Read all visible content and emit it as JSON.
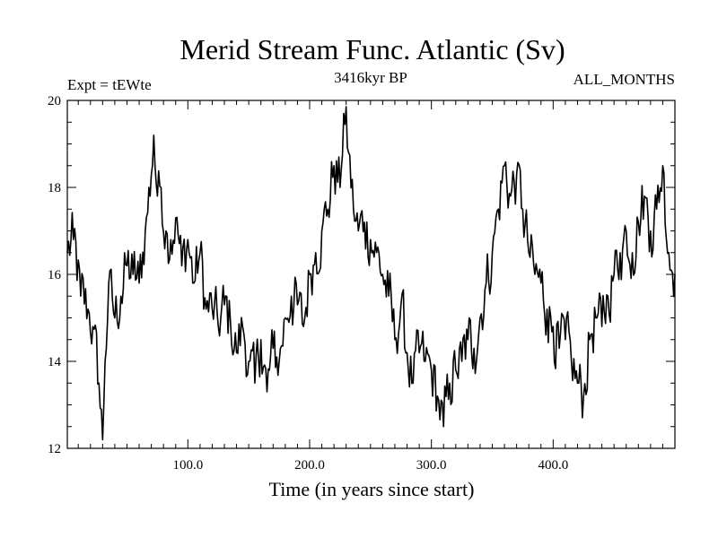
{
  "chart_data": {
    "type": "line",
    "title": "Merid Stream Func. Atlantic (Sv)",
    "subtitle_left": "Expt = tEWte",
    "subtitle_center": "3416kyr BP",
    "subtitle_right": "ALL_MONTHS",
    "xlabel": "Time (in years since start)",
    "ylabel": "",
    "xlim": [
      1,
      500
    ],
    "ylim": [
      12,
      20
    ],
    "xticks": [
      100,
      200,
      300,
      400
    ],
    "xtick_labels": [
      "100.0",
      "200.0",
      "300.0",
      "400.0"
    ],
    "yticks": [
      12,
      14,
      16,
      18,
      20
    ],
    "ytick_labels": [
      "12",
      "14",
      "16",
      "18",
      "20"
    ],
    "series": [
      {
        "name": "Merid Stream Func. Atlantic",
        "color": "#000000",
        "x": [
          1,
          6,
          12,
          18,
          22,
          27,
          30,
          32,
          35,
          40,
          45,
          50,
          55,
          60,
          65,
          70,
          72,
          75,
          78,
          82,
          86,
          90,
          95,
          100,
          105,
          110,
          115,
          120,
          125,
          130,
          135,
          140,
          145,
          150,
          155,
          160,
          165,
          170,
          175,
          180,
          185,
          190,
          195,
          200,
          205,
          210,
          215,
          220,
          225,
          228,
          232,
          236,
          240,
          245,
          250,
          255,
          260,
          265,
          270,
          275,
          280,
          285,
          290,
          295,
          300,
          305,
          310,
          315,
          320,
          325,
          330,
          335,
          340,
          345,
          350,
          355,
          360,
          365,
          370,
          375,
          380,
          385,
          390,
          395,
          400,
          405,
          410,
          415,
          420,
          425,
          430,
          435,
          440,
          445,
          450,
          455,
          460,
          465,
          470,
          475,
          480,
          485,
          490,
          495,
          500
        ],
        "values": [
          16.5,
          16.8,
          15.5,
          15.2,
          14.8,
          13.5,
          12.2,
          14.0,
          15.8,
          15.0,
          15.5,
          16.2,
          16.0,
          15.8,
          17.0,
          18.3,
          19.2,
          17.8,
          18.0,
          17.0,
          16.8,
          17.3,
          16.2,
          16.8,
          15.8,
          16.5,
          15.2,
          15.2,
          14.8,
          15.3,
          14.9,
          14.2,
          14.8,
          14.0,
          13.5,
          14.5,
          13.3,
          14.3,
          14.0,
          15.0,
          15.5,
          15.3,
          14.8,
          16.0,
          16.5,
          17.0,
          17.5,
          18.5,
          18.0,
          19.7,
          18.8,
          17.5,
          17.0,
          17.2,
          16.8,
          16.5,
          16.0,
          15.5,
          14.5,
          15.3,
          14.2,
          13.5,
          14.2,
          14.0,
          13.8,
          13.2,
          12.5,
          13.5,
          13.8,
          14.0,
          14.5,
          14.3,
          15.0,
          15.8,
          16.5,
          17.5,
          18.5,
          17.8,
          18.3,
          17.5,
          16.5,
          16.0,
          15.8,
          15.2,
          14.8,
          14.3,
          14.5,
          14.0,
          13.5,
          13.2,
          14.5,
          15.0,
          14.8,
          15.5,
          16.0,
          16.5,
          17.0,
          16.5,
          17.2,
          17.8,
          17.0,
          17.5,
          18.5,
          16.5,
          16.0
        ]
      }
    ]
  }
}
